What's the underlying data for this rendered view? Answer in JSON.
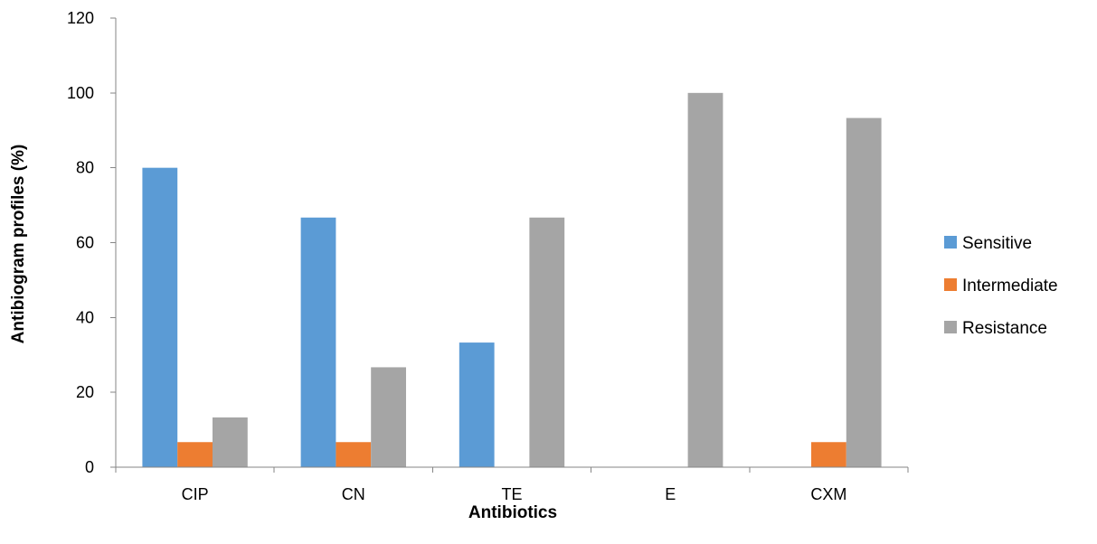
{
  "chart_data": {
    "type": "bar",
    "title": "",
    "xlabel": "Antibiotics",
    "ylabel": "Antibiogram profiles (%)",
    "categories": [
      "CIP",
      "CN",
      "TE",
      "E",
      "CXM"
    ],
    "series": [
      {
        "name": "Sensitive",
        "color": "#5b9bd5",
        "values": [
          80,
          66.7,
          33.3,
          0,
          0
        ]
      },
      {
        "name": "Intermediate",
        "color": "#ed7d31",
        "values": [
          6.7,
          6.7,
          0,
          0,
          6.7
        ]
      },
      {
        "name": "Resistance",
        "color": "#a5a5a5",
        "values": [
          13.3,
          26.7,
          66.7,
          100,
          93.3
        ]
      }
    ],
    "ylim": [
      0,
      120
    ],
    "yticks": [
      "0",
      "20",
      "40",
      "60",
      "80",
      "100",
      "120"
    ],
    "grid": false,
    "legend_position": "right"
  }
}
